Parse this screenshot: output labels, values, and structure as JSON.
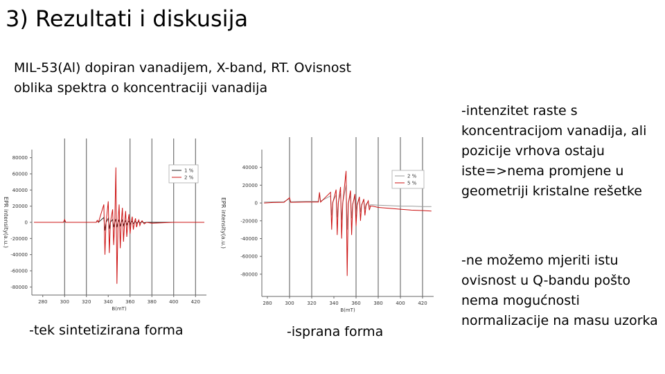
{
  "slide": {
    "title": "3) Rezultati i diskusija",
    "subtitle_lines": [
      "MIL-53(Al) dopiran vanadijem, X-band, RT. Ovisnost",
      "oblika spektra o koncentraciji vanadija"
    ],
    "note1_lines": [
      "-intenzitet raste s",
      "koncentracijom vanadija, ali",
      "pozicije vrhova ostaju",
      "iste=>nema promjene u",
      "geometriji kristalne rešetke"
    ],
    "note2_lines": [
      "-ne možemo mjeriti istu",
      "ovisnost u Q-bandu pošto",
      "nema mogućnosti",
      "normalizacije na masu uzorka"
    ],
    "caption1": "-tek sintetizirana forma",
    "caption2": "-isprana forma"
  },
  "chart_data": [
    {
      "type": "line",
      "xlabel": "B(mT)",
      "ylabel": "EPR intensity(a.u.)",
      "xlim": [
        270,
        430
      ],
      "ylim": [
        -90000,
        90000
      ],
      "xticks": [
        280,
        300,
        320,
        340,
        360,
        380,
        400,
        420
      ],
      "yticks": [
        80000,
        60000,
        40000,
        20000,
        0,
        -20000,
        -40000,
        -60000,
        -80000
      ],
      "vlines": [
        300,
        320,
        360,
        380,
        400,
        420
      ],
      "legend": "top-right",
      "series": [
        {
          "name": "1 %",
          "color": "#222222",
          "x": [
            272,
            285,
            299,
            300,
            301,
            315,
            329,
            330,
            331,
            336,
            337,
            338,
            340,
            341,
            342,
            344,
            345,
            346,
            347,
            348,
            349,
            350,
            351,
            352,
            353,
            354,
            355,
            356,
            357,
            358,
            359,
            360,
            361,
            362,
            363,
            364,
            365,
            366,
            367,
            368,
            369,
            370,
            371,
            373,
            375,
            380,
            390,
            400,
            410,
            420,
            428
          ],
          "y": [
            0,
            0,
            0,
            3000,
            0,
            0,
            0,
            2000,
            0,
            6000,
            -10000,
            0,
            5000,
            -8000,
            0,
            3500,
            -6000,
            0,
            4000,
            -6000,
            0,
            3000,
            -5000,
            0,
            3000,
            -4000,
            0,
            2000,
            -3000,
            0,
            1500,
            -2500,
            0,
            1500,
            -1500,
            0,
            1000,
            -1000,
            0,
            800,
            -800,
            0,
            500,
            -500,
            0,
            0,
            0,
            0,
            0,
            0,
            0
          ]
        },
        {
          "name": "2 %",
          "color": "#cc1111",
          "x": [
            272,
            285,
            299,
            300,
            301,
            315,
            329,
            330,
            331,
            336,
            337,
            338,
            340,
            341,
            342,
            344,
            345,
            346,
            347,
            348,
            349,
            350,
            351,
            352,
            353,
            354,
            355,
            356,
            357,
            358,
            359,
            360,
            361,
            362,
            363,
            364,
            365,
            366,
            367,
            368,
            369,
            370,
            371,
            373,
            375,
            380,
            390,
            400,
            410,
            420,
            428
          ],
          "y": [
            0,
            0,
            0,
            3500,
            0,
            0,
            0,
            2500,
            0,
            22000,
            -40000,
            0,
            26000,
            -38000,
            0,
            16000,
            -28000,
            0,
            68000,
            -76000,
            0,
            22000,
            -32000,
            0,
            18000,
            -24000,
            0,
            14000,
            -18000,
            0,
            10000,
            -14000,
            0,
            7000,
            -9000,
            0,
            5000,
            -6000,
            0,
            3000,
            -4000,
            0,
            2000,
            -2000,
            0,
            -1000,
            -500,
            0,
            0,
            0,
            0
          ]
        }
      ]
    },
    {
      "type": "line",
      "xlabel": "B(mT)",
      "ylabel": "EPR intensity(a.u.)",
      "xlim": [
        275,
        430
      ],
      "ylim": [
        -105000,
        60000
      ],
      "xticks": [
        280,
        300,
        320,
        340,
        360,
        380,
        400,
        420
      ],
      "yticks": [
        40000,
        20000,
        0,
        -20000,
        -40000,
        -60000,
        -80000
      ],
      "vlines": [
        300,
        320,
        360,
        380,
        400,
        420
      ],
      "legend": "top-right",
      "series": [
        {
          "name": "2 %",
          "color": "#999999",
          "x": [
            277,
            285,
            295,
            300,
            301,
            302,
            315,
            326,
            327,
            328,
            337,
            338,
            339,
            342,
            343,
            344,
            346,
            347,
            348,
            351,
            352,
            353,
            355,
            356,
            357,
            359,
            360,
            361,
            363,
            364,
            365,
            367,
            368,
            369,
            371,
            372,
            373,
            375,
            380,
            390,
            400,
            410,
            420,
            428
          ],
          "y": [
            1000,
            1200,
            1500,
            5000,
            1500,
            1500,
            1800,
            1800,
            9000,
            2000,
            8000,
            -14000,
            1000,
            9000,
            -16000,
            1000,
            11000,
            -19000,
            500,
            20000,
            -30000,
            0,
            9000,
            -17000,
            -500,
            7000,
            -13000,
            -1000,
            4500,
            -10000,
            -1500,
            3000,
            -7000,
            -1500,
            1500,
            -4000,
            -2000,
            -2000,
            -2500,
            -3000,
            -3500,
            -3500,
            -4000,
            -4000
          ]
        },
        {
          "name": "5 %",
          "color": "#cc1111",
          "x": [
            277,
            285,
            295,
            300,
            301,
            302,
            315,
            326,
            327,
            328,
            337,
            338,
            339,
            342,
            343,
            344,
            346,
            347,
            348,
            351,
            352,
            353,
            355,
            356,
            357,
            359,
            360,
            361,
            363,
            364,
            365,
            367,
            368,
            369,
            371,
            372,
            373,
            375,
            380,
            390,
            400,
            410,
            420,
            428
          ],
          "y": [
            0,
            500,
            800,
            6000,
            800,
            800,
            1000,
            1000,
            12000,
            1000,
            12000,
            -30000,
            0,
            15000,
            -36000,
            0,
            18000,
            -40000,
            -500,
            36000,
            -82000,
            -1000,
            14000,
            -36000,
            -2000,
            10000,
            -26000,
            -2500,
            7000,
            -20000,
            -3000,
            4500,
            -14000,
            -3000,
            2500,
            -8000,
            -3500,
            -3500,
            -5000,
            -6000,
            -7000,
            -8000,
            -8500,
            -9000
          ]
        }
      ]
    }
  ]
}
